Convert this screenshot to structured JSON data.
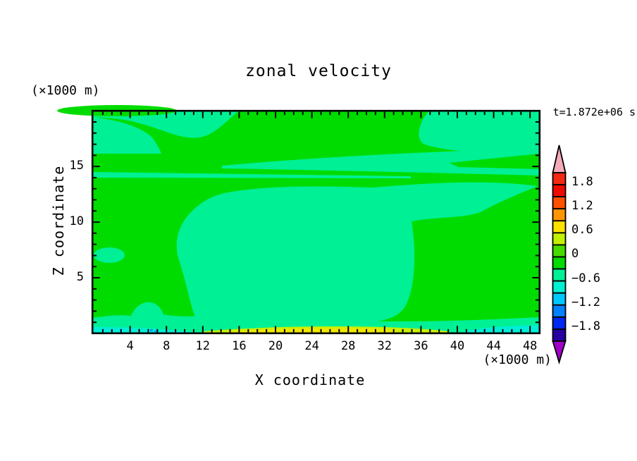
{
  "title": "zonal velocity",
  "time_label": "t=1.872e+06 s",
  "x_axis": {
    "title": "X coordinate",
    "unit": "(×1000 m)",
    "ticks": [
      "4",
      "8",
      "12",
      "16",
      "20",
      "24",
      "28",
      "32",
      "36",
      "40",
      "44",
      "48"
    ]
  },
  "y_axis": {
    "title": "Z coordinate",
    "unit": "(×1000 m)",
    "ticks": [
      "5",
      "10",
      "15"
    ]
  },
  "colorbar": {
    "labels": [
      "1.8",
      "1.2",
      "0.6",
      "0",
      "−0.6",
      "−1.2",
      "−1.8"
    ],
    "colors": [
      "#F52814",
      "#EF0A00",
      "#FF5000",
      "#FF9600",
      "#FFE100",
      "#C3F000",
      "#46DC00",
      "#00DC00",
      "#00F096",
      "#00F0D2",
      "#00C8FF",
      "#0082FF",
      "#0028F0",
      "#2800A0"
    ],
    "arrow_top_color": "#F5AAB9",
    "arrow_bottom_color": "#A000C8"
  },
  "plot_colors": {
    "green_base": "#00DC00",
    "spring": "#00F096",
    "turquoise": "#00EED8",
    "chartreuse": "#C8F000",
    "yellow": "#EEE800",
    "speck_blue": "#0096FF",
    "speck_orange": "#FFAF00",
    "border": "#000000"
  },
  "chart_data": {
    "type": "filled_contour",
    "title": "zonal velocity",
    "xlabel": "X coordinate (×1000 m)",
    "ylabel": "Z coordinate (×1000 m)",
    "x_range": [
      0,
      49
    ],
    "z_range": [
      0,
      20
    ],
    "time_annotation": "t=1.872e+06 s",
    "contour_interval": 0.3,
    "colorbar_range": [
      -2.1,
      2.1
    ],
    "level_labels": [
      1.8,
      1.2,
      0.6,
      0,
      -0.6,
      -1.2,
      -1.8
    ],
    "field_summary": [
      {
        "region": "background over most of domain",
        "value_range": [
          -0.3,
          0
        ]
      },
      {
        "region": "large central blob, horizontal bands near z=14-16, top-left and top-right patches, bottom strip near z=1",
        "value_range": [
          -0.6,
          -0.3
        ]
      },
      {
        "region": "small oval near x=2 z=6.5 and blobs near bottom left",
        "value_range": [
          -0.6,
          -0.3
        ]
      },
      {
        "region": "thin yellow strip along bottom boundary x=13-33",
        "value_range": [
          0.3,
          0.9
        ]
      },
      {
        "region": "bottom-left corner strip x=0-14 and bottom-right strip x=40-49",
        "value_range": [
          -0.9,
          -0.6
        ]
      }
    ]
  }
}
